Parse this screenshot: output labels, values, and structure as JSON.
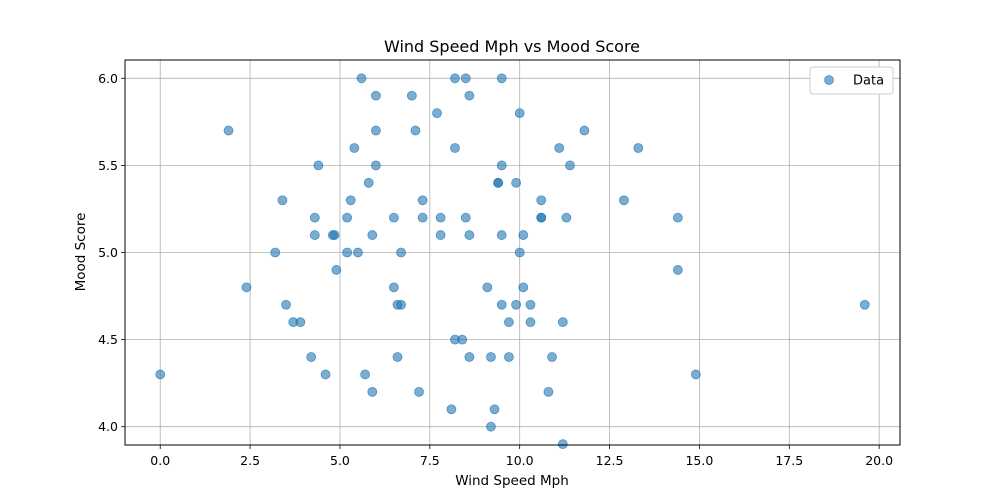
{
  "chart_data": {
    "type": "scatter",
    "title": "Wind Speed Mph vs Mood Score",
    "xlabel": "Wind Speed Mph",
    "ylabel": "Mood Score",
    "xlim": [
      -0.98,
      20.58
    ],
    "ylim": [
      3.895,
      6.105
    ],
    "xticks": [
      0.0,
      2.5,
      5.0,
      7.5,
      10.0,
      12.5,
      15.0,
      17.5,
      20.0
    ],
    "xtick_labels": [
      "0.0",
      "2.5",
      "5.0",
      "7.5",
      "10.0",
      "12.5",
      "15.0",
      "17.5",
      "20.0"
    ],
    "yticks": [
      4.0,
      4.5,
      5.0,
      5.5,
      6.0
    ],
    "ytick_labels": [
      "4.0",
      "4.5",
      "5.0",
      "5.5",
      "6.0"
    ],
    "grid": true,
    "legend_position": "top-right",
    "series": [
      {
        "name": "Data",
        "color": "#1f77b4",
        "alpha": 0.6,
        "points": [
          [
            0.0,
            4.3
          ],
          [
            1.9,
            5.7
          ],
          [
            2.4,
            4.8
          ],
          [
            3.2,
            5.0
          ],
          [
            3.4,
            5.3
          ],
          [
            3.5,
            4.7
          ],
          [
            3.7,
            4.6
          ],
          [
            3.9,
            4.6
          ],
          [
            4.2,
            4.4
          ],
          [
            4.3,
            5.2
          ],
          [
            4.3,
            5.1
          ],
          [
            4.4,
            5.5
          ],
          [
            4.6,
            4.3
          ],
          [
            4.8,
            5.1
          ],
          [
            4.85,
            5.1
          ],
          [
            4.9,
            4.9
          ],
          [
            5.2,
            5.0
          ],
          [
            5.2,
            5.2
          ],
          [
            5.3,
            5.3
          ],
          [
            5.4,
            5.6
          ],
          [
            5.5,
            5.0
          ],
          [
            5.6,
            6.0
          ],
          [
            5.7,
            4.3
          ],
          [
            5.8,
            5.4
          ],
          [
            5.9,
            4.2
          ],
          [
            5.9,
            5.1
          ],
          [
            6.0,
            5.9
          ],
          [
            6.0,
            5.7
          ],
          [
            6.0,
            5.5
          ],
          [
            6.5,
            4.8
          ],
          [
            6.5,
            5.2
          ],
          [
            6.6,
            4.7
          ],
          [
            6.6,
            4.4
          ],
          [
            6.7,
            4.7
          ],
          [
            6.7,
            5.0
          ],
          [
            7.0,
            5.9
          ],
          [
            7.1,
            5.7
          ],
          [
            7.2,
            4.2
          ],
          [
            7.3,
            5.3
          ],
          [
            7.3,
            5.2
          ],
          [
            7.7,
            5.8
          ],
          [
            7.8,
            5.2
          ],
          [
            7.8,
            5.1
          ],
          [
            8.1,
            4.1
          ],
          [
            8.2,
            6.0
          ],
          [
            8.2,
            5.6
          ],
          [
            8.2,
            4.5
          ],
          [
            8.4,
            4.5
          ],
          [
            8.5,
            6.0
          ],
          [
            8.5,
            5.2
          ],
          [
            8.6,
            5.9
          ],
          [
            8.6,
            5.1
          ],
          [
            8.6,
            4.4
          ],
          [
            9.1,
            4.8
          ],
          [
            9.2,
            4.4
          ],
          [
            9.2,
            4.0
          ],
          [
            9.3,
            4.1
          ],
          [
            9.4,
            5.4
          ],
          [
            9.4,
            5.4
          ],
          [
            9.5,
            6.0
          ],
          [
            9.5,
            5.5
          ],
          [
            9.5,
            5.1
          ],
          [
            9.5,
            4.7
          ],
          [
            9.7,
            4.6
          ],
          [
            9.7,
            4.4
          ],
          [
            9.9,
            5.4
          ],
          [
            9.9,
            4.7
          ],
          [
            10.0,
            5.8
          ],
          [
            10.0,
            5.0
          ],
          [
            10.1,
            5.1
          ],
          [
            10.1,
            4.8
          ],
          [
            10.3,
            4.7
          ],
          [
            10.3,
            4.6
          ],
          [
            10.6,
            5.3
          ],
          [
            10.6,
            5.2
          ],
          [
            10.6,
            5.2
          ],
          [
            10.8,
            4.2
          ],
          [
            10.9,
            4.4
          ],
          [
            11.1,
            5.6
          ],
          [
            11.2,
            4.6
          ],
          [
            11.2,
            3.9
          ],
          [
            11.3,
            5.2
          ],
          [
            11.4,
            5.5
          ],
          [
            11.8,
            5.7
          ],
          [
            12.9,
            5.3
          ],
          [
            13.3,
            5.6
          ],
          [
            14.4,
            5.2
          ],
          [
            14.4,
            4.9
          ],
          [
            14.9,
            4.3
          ],
          [
            19.6,
            4.7
          ]
        ]
      }
    ]
  }
}
